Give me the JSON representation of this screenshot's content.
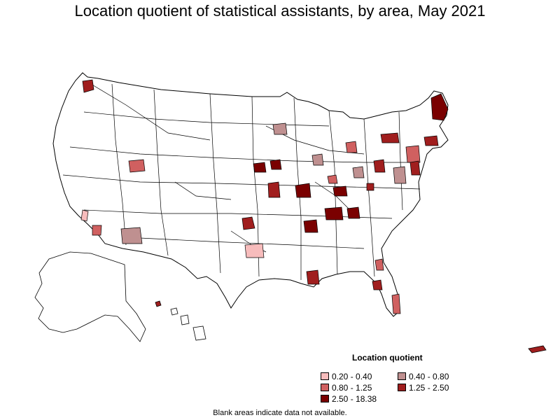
{
  "title": "Location quotient of statistical assistants, by area, May 2021",
  "legend": {
    "title": "Location quotient",
    "items": [
      {
        "label": "0.20 - 0.40",
        "color": "#f7bcbc"
      },
      {
        "label": "0.40 - 0.80",
        "color": "#bf9090"
      },
      {
        "label": "0.80 - 1.25",
        "color": "#d06060"
      },
      {
        "label": "1.25 - 2.50",
        "color": "#a01e1e"
      },
      {
        "label": "2.50 - 18.38",
        "color": "#7a0000"
      }
    ]
  },
  "footnote": "Blank areas indicate data not available.",
  "colors": {
    "no_data": "#ffffff",
    "border": "#000000"
  }
}
